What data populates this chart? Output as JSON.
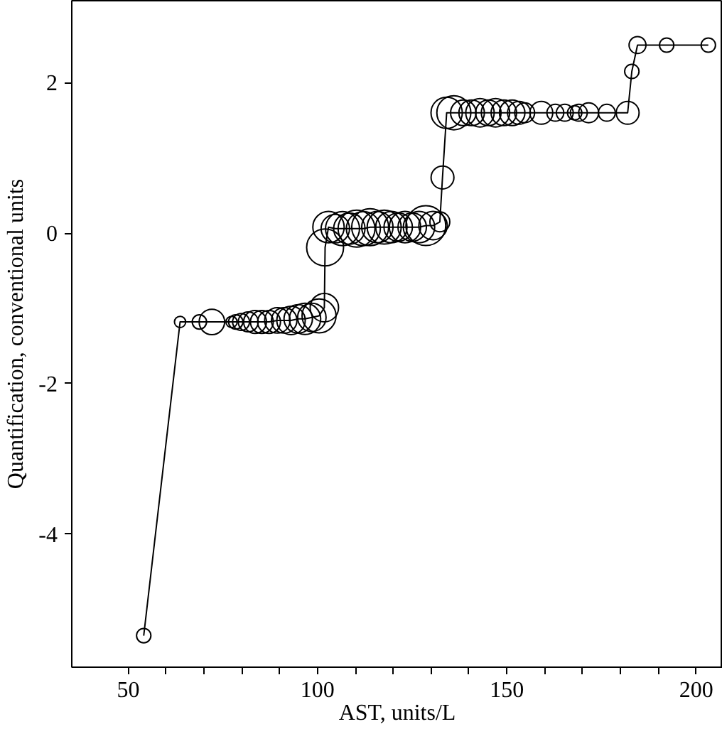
{
  "chart_data": {
    "type": "bubble",
    "xlabel": "AST, units/L",
    "ylabel": "Quantification, conventional units",
    "xlim": [
      35.1,
      207
    ],
    "ylim": [
      -5.77,
      3.09
    ],
    "xticks": [
      50,
      {
        "value": 60,
        "label": null
      },
      {
        "value": 70,
        "label": null
      },
      {
        "value": 80,
        "label": null
      },
      {
        "value": 90,
        "label": null
      },
      100,
      {
        "value": 110,
        "label": null
      },
      {
        "value": 120,
        "label": null
      },
      {
        "value": 130,
        "label": null
      },
      {
        "value": 140,
        "label": null
      },
      150,
      {
        "value": 160,
        "label": null
      },
      {
        "value": 170,
        "label": null
      },
      {
        "value": 180,
        "label": null
      },
      {
        "value": 190,
        "label": null
      },
      200
    ],
    "yticks": [
      {
        "value": -4,
        "label": "-4"
      },
      {
        "value": -2,
        "label": "-2"
      },
      0,
      2
    ],
    "marker": "circle",
    "series": [
      {
        "color": "#000000",
        "type": "line",
        "marker": "none",
        "line_style": "solid",
        "x": [
          54.1,
          63.7,
          68.8,
          72.1,
          77.3,
          78.4,
          79.8,
          81.7,
          83.5,
          85.3,
          87.2,
          89.4,
          91.2,
          93.0,
          94.9,
          96.7,
          98.5,
          100.4,
          101.8,
          102.0,
          102.9,
          104.7,
          106.6,
          108.4,
          110.3,
          112.1,
          113.9,
          115.8,
          117.6,
          119.5,
          121.3,
          123.1,
          125.0,
          126.8,
          128.6,
          130.5,
          132.3,
          133.0,
          134.1,
          136.0,
          138.5,
          140.7,
          142.9,
          145.1,
          147.0,
          149.2,
          151.4,
          153.2,
          154.7,
          159.1,
          162.8,
          165.3,
          167.9,
          169.0,
          171.6,
          176.4,
          181.9,
          183.0,
          184.5,
          192.2,
          203.2
        ],
        "values": [
          -5.35,
          -1.18,
          -1.18,
          -1.18,
          -1.18,
          -1.18,
          -1.18,
          -1.18,
          -1.18,
          -1.18,
          -1.18,
          -1.16,
          -1.16,
          -1.16,
          -1.14,
          -1.14,
          -1.12,
          -1.1,
          -0.99,
          -0.19,
          0.08,
          0.06,
          0.06,
          0.06,
          0.06,
          0.06,
          0.08,
          0.08,
          0.08,
          0.08,
          0.08,
          0.08,
          0.08,
          0.08,
          0.1,
          0.1,
          0.15,
          0.74,
          1.6,
          1.6,
          1.6,
          1.6,
          1.6,
          1.6,
          1.6,
          1.6,
          1.6,
          1.6,
          1.6,
          1.6,
          1.6,
          1.6,
          1.6,
          1.6,
          1.6,
          1.6,
          1.6,
          2.15,
          2.5,
          2.5,
          2.5
        ]
      },
      {
        "color": "#000000",
        "x": [
          54.1,
          63.7,
          68.8,
          72.1,
          77.3,
          78.4,
          79.8,
          81.7,
          83.5,
          85.3,
          87.2,
          89.4,
          91.2,
          93.0,
          94.9,
          96.7,
          98.5,
          100.4,
          101.8,
          102.0,
          102.9,
          104.7,
          106.6,
          108.4,
          110.3,
          112.1,
          113.9,
          115.8,
          117.6,
          119.5,
          121.3,
          123.1,
          125.0,
          126.8,
          128.6,
          130.5,
          132.3,
          133.0,
          134.1,
          136.0,
          138.5,
          140.7,
          142.9,
          145.1,
          147.0,
          149.2,
          151.4,
          153.2,
          154.7,
          159.1,
          162.8,
          165.3,
          167.9,
          169.0,
          171.6,
          176.4,
          181.9,
          183.0,
          184.5,
          192.2,
          203.2
        ],
        "values": [
          -5.35,
          -1.18,
          -1.18,
          -1.18,
          -1.18,
          -1.18,
          -1.18,
          -1.18,
          -1.18,
          -1.18,
          -1.18,
          -1.16,
          -1.16,
          -1.16,
          -1.14,
          -1.14,
          -1.12,
          -1.1,
          -0.99,
          -0.19,
          0.08,
          0.06,
          0.06,
          0.06,
          0.06,
          0.06,
          0.08,
          0.08,
          0.08,
          0.08,
          0.08,
          0.08,
          0.08,
          0.08,
          0.1,
          0.1,
          0.15,
          0.74,
          1.6,
          1.6,
          1.6,
          1.6,
          1.6,
          1.6,
          1.6,
          1.6,
          1.6,
          1.6,
          1.6,
          1.6,
          1.6,
          1.6,
          1.6,
          1.6,
          1.6,
          1.6,
          1.6,
          2.15,
          2.5,
          2.5,
          2.5
        ],
        "sizes": [
          0.13,
          0.08,
          0.13,
          0.41,
          0.08,
          0.13,
          0.18,
          0.25,
          0.33,
          0.33,
          0.33,
          0.41,
          0.41,
          0.51,
          0.51,
          0.62,
          0.51,
          0.73,
          0.51,
          0.86,
          0.62,
          0.51,
          0.73,
          0.62,
          0.86,
          0.73,
          0.86,
          0.62,
          0.73,
          0.62,
          0.51,
          0.62,
          0.51,
          0.62,
          1,
          0.51,
          0.25,
          0.33,
          0.62,
          0.73,
          0.41,
          0.41,
          0.51,
          0.41,
          0.51,
          0.41,
          0.41,
          0.33,
          0.25,
          0.33,
          0.18,
          0.18,
          0.13,
          0.18,
          0.25,
          0.18,
          0.33,
          0.13,
          0.18,
          0.13,
          0.13
        ]
      }
    ]
  }
}
